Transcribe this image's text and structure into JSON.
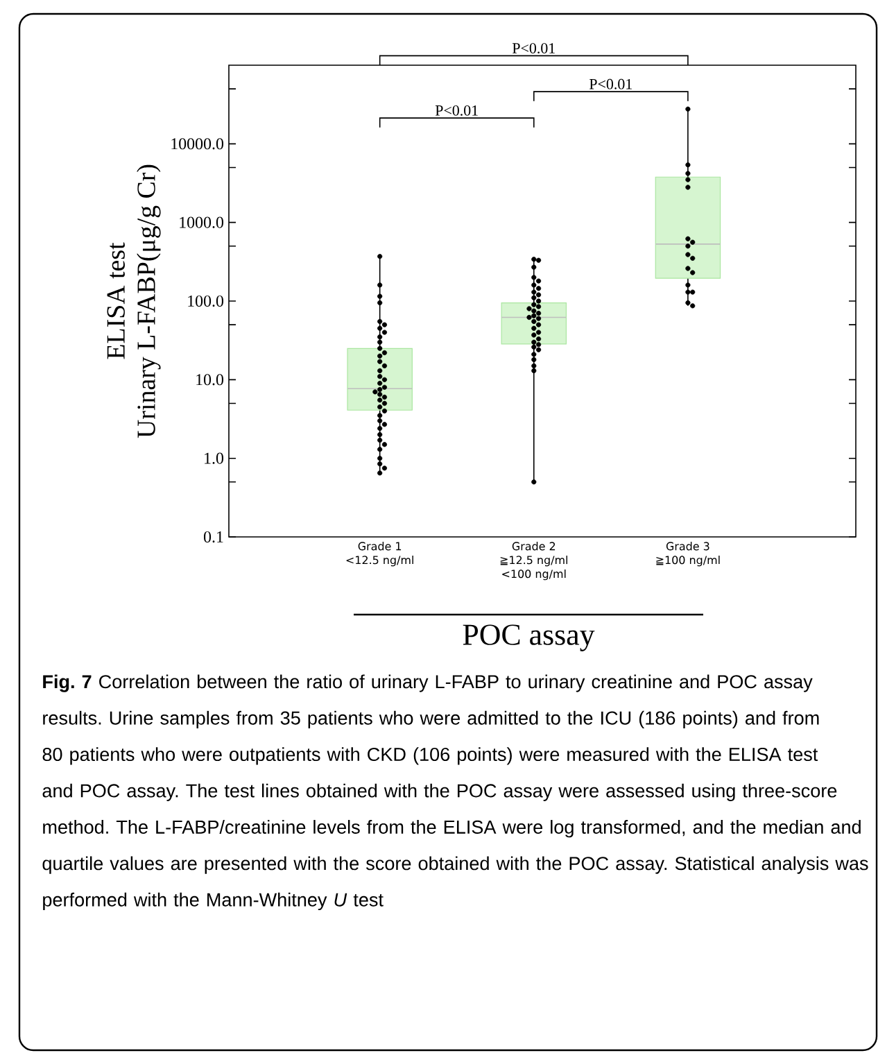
{
  "chart_data": {
    "type": "box",
    "categories": [
      "Grade 1\n<12.5 ng/ml",
      "Grade 2\n≧12.5 ng/ml\n<100 ng/ml",
      "Grade 3\n≧100 ng/ml"
    ],
    "boxes": [
      {
        "low": 0.65,
        "q1": 4.1,
        "median": 7.7,
        "q3": 24.9,
        "high": 370
      },
      {
        "low": 0.5,
        "q1": 28.5,
        "median": 62,
        "q3": 95,
        "high": 340
      },
      {
        "low": 87,
        "q1": 195,
        "median": 530,
        "q3": 3780,
        "high": 27700
      }
    ],
    "color": "#d6f5d0",
    "series": [
      {
        "type": "scatter",
        "color": "#000000",
        "x": [
          "Grade 1\n<12.5 ng/ml",
          "Grade 1\n<12.5 ng/ml",
          "Grade 1\n<12.5 ng/ml",
          "Grade 1\n<12.5 ng/ml",
          "Grade 1\n<12.5 ng/ml",
          "Grade 1\n<12.5 ng/ml",
          "Grade 1\n<12.5 ng/ml",
          "Grade 1\n<12.5 ng/ml",
          "Grade 1\n<12.5 ng/ml",
          "Grade 1\n<12.5 ng/ml",
          "Grade 1\n<12.5 ng/ml",
          "Grade 1\n<12.5 ng/ml",
          "Grade 1\n<12.5 ng/ml",
          "Grade 1\n<12.5 ng/ml",
          "Grade 1\n<12.5 ng/ml",
          "Grade 1\n<12.5 ng/ml",
          "Grade 1\n<12.5 ng/ml",
          "Grade 1\n<12.5 ng/ml",
          "Grade 1\n<12.5 ng/ml",
          "Grade 1\n<12.5 ng/ml",
          "Grade 1\n<12.5 ng/ml",
          "Grade 1\n<12.5 ng/ml",
          "Grade 1\n<12.5 ng/ml",
          "Grade 1\n<12.5 ng/ml",
          "Grade 1\n<12.5 ng/ml",
          "Grade 1\n<12.5 ng/ml",
          "Grade 1\n<12.5 ng/ml",
          "Grade 1\n<12.5 ng/ml",
          "Grade 1\n<12.5 ng/ml",
          "Grade 1\n<12.5 ng/ml",
          "Grade 1\n<12.5 ng/ml",
          "Grade 1\n<12.5 ng/ml",
          "Grade 1\n<12.5 ng/ml",
          "Grade 1\n<12.5 ng/ml",
          "Grade 1\n<12.5 ng/ml",
          "Grade 1\n<12.5 ng/ml",
          "Grade 1\n<12.5 ng/ml",
          "Grade 1\n<12.5 ng/ml",
          "Grade 1\n<12.5 ng/ml",
          "Grade 1\n<12.5 ng/ml"
        ],
        "values": [
          370,
          160,
          115,
          95,
          55,
          50,
          45,
          40,
          35,
          30,
          25,
          22,
          20,
          17,
          15,
          13,
          11,
          10,
          9,
          8,
          7.5,
          7,
          6.5,
          6,
          5.5,
          5,
          4.5,
          4,
          3.5,
          3,
          2.7,
          2.4,
          2,
          1.7,
          1.5,
          1.3,
          1.0,
          0.85,
          0.75,
          0.65
        ],
        "marker": "circle"
      },
      {
        "type": "scatter",
        "color": "#000000",
        "x": [
          "Grade 2\n≧12.5 ng/ml\n<100 ng/ml",
          "Grade 2\n≧12.5 ng/ml\n<100 ng/ml",
          "Grade 2\n≧12.5 ng/ml\n<100 ng/ml",
          "Grade 2\n≧12.5 ng/ml\n<100 ng/ml",
          "Grade 2\n≧12.5 ng/ml\n<100 ng/ml",
          "Grade 2\n≧12.5 ng/ml\n<100 ng/ml",
          "Grade 2\n≧12.5 ng/ml\n<100 ng/ml",
          "Grade 2\n≧12.5 ng/ml\n<100 ng/ml",
          "Grade 2\n≧12.5 ng/ml\n<100 ng/ml",
          "Grade 2\n≧12.5 ng/ml\n<100 ng/ml",
          "Grade 2\n≧12.5 ng/ml\n<100 ng/ml",
          "Grade 2\n≧12.5 ng/ml\n<100 ng/ml",
          "Grade 2\n≧12.5 ng/ml\n<100 ng/ml",
          "Grade 2\n≧12.5 ng/ml\n<100 ng/ml",
          "Grade 2\n≧12.5 ng/ml\n<100 ng/ml",
          "Grade 2\n≧12.5 ng/ml\n<100 ng/ml",
          "Grade 2\n≧12.5 ng/ml\n<100 ng/ml",
          "Grade 2\n≧12.5 ng/ml\n<100 ng/ml",
          "Grade 2\n≧12.5 ng/ml\n<100 ng/ml",
          "Grade 2\n≧12.5 ng/ml\n<100 ng/ml",
          "Grade 2\n≧12.5 ng/ml\n<100 ng/ml",
          "Grade 2\n≧12.5 ng/ml\n<100 ng/ml",
          "Grade 2\n≧12.5 ng/ml\n<100 ng/ml",
          "Grade 2\n≧12.5 ng/ml\n<100 ng/ml",
          "Grade 2\n≧12.5 ng/ml\n<100 ng/ml",
          "Grade 2\n≧12.5 ng/ml\n<100 ng/ml",
          "Grade 2\n≧12.5 ng/ml\n<100 ng/ml",
          "Grade 2\n≧12.5 ng/ml\n<100 ng/ml",
          "Grade 2\n≧12.5 ng/ml\n<100 ng/ml",
          "Grade 2\n≧12.5 ng/ml\n<100 ng/ml",
          "Grade 2\n≧12.5 ng/ml\n<100 ng/ml",
          "Grade 2\n≧12.5 ng/ml\n<100 ng/ml",
          "Grade 2\n≧12.5 ng/ml\n<100 ng/ml",
          "Grade 2\n≧12.5 ng/ml\n<100 ng/ml"
        ],
        "values": [
          340,
          330,
          270,
          200,
          180,
          160,
          145,
          130,
          120,
          110,
          100,
          90,
          85,
          80,
          75,
          70,
          65,
          62,
          60,
          55,
          50,
          45,
          40,
          37,
          33,
          30,
          28,
          26,
          24,
          21,
          18,
          15,
          13,
          0.5
        ],
        "marker": "circle"
      },
      {
        "type": "scatter",
        "color": "#000000",
        "x": [
          "Grade 3\n≧100 ng/ml",
          "Grade 3\n≧100 ng/ml",
          "Grade 3\n≧100 ng/ml",
          "Grade 3\n≧100 ng/ml",
          "Grade 3\n≧100 ng/ml",
          "Grade 3\n≧100 ng/ml",
          "Grade 3\n≧100 ng/ml",
          "Grade 3\n≧100 ng/ml",
          "Grade 3\n≧100 ng/ml",
          "Grade 3\n≧100 ng/ml",
          "Grade 3\n≧100 ng/ml",
          "Grade 3\n≧100 ng/ml",
          "Grade 3\n≧100 ng/ml",
          "Grade 3\n≧100 ng/ml",
          "Grade 3\n≧100 ng/ml",
          "Grade 3\n≧100 ng/ml",
          "Grade 3\n≧100 ng/ml"
        ],
        "values": [
          27700,
          5400,
          4200,
          3500,
          2800,
          620,
          560,
          500,
          390,
          350,
          260,
          230,
          160,
          130,
          130,
          95,
          87
        ],
        "marker": "circle"
      }
    ],
    "log": "y",
    "ylim": [
      0.1,
      100000
    ],
    "yticks": [
      {
        "value": 0.1,
        "label": "0.1"
      },
      {
        "value": 0.5,
        "label": null
      },
      {
        "value": 1,
        "label": "1.0"
      },
      {
        "value": 5,
        "label": null
      },
      {
        "value": 10,
        "label": "10.0"
      },
      {
        "value": 50,
        "label": null
      },
      {
        "value": 100,
        "label": "100.0"
      },
      {
        "value": 500,
        "label": null
      },
      {
        "value": 1000,
        "label": "1000.0"
      },
      {
        "value": 5000,
        "label": null
      },
      {
        "value": 10000,
        "label": "10000.0"
      },
      {
        "value": 50000,
        "label": null
      }
    ],
    "ylabel": "ELISA test\nUrinary L-FABP(μg/g Cr)",
    "xlabel": "POC assay",
    "annotations": [
      "P<0.01",
      "P<0.01",
      "P<0.01",
      "**Fig. 7** Correlation between the ratio of urinary L-FABP to urinary creatinine and POC assay results. Urine samples from 35 patients who were admitted to the ICU (186 points) and from 80 patients who were outpatients with CKD (106 points) were measured with the ELISA test and POC assay. The test lines obtained with the POC assay were assessed using three-score method. The L-FABP/creatinine levels from the ELISA were log transformed, and the median and quartile values are presented with the score obtained with the POC assay. Statistical analysis was performed with the Mann-Whitney *U* test"
    ]
  }
}
